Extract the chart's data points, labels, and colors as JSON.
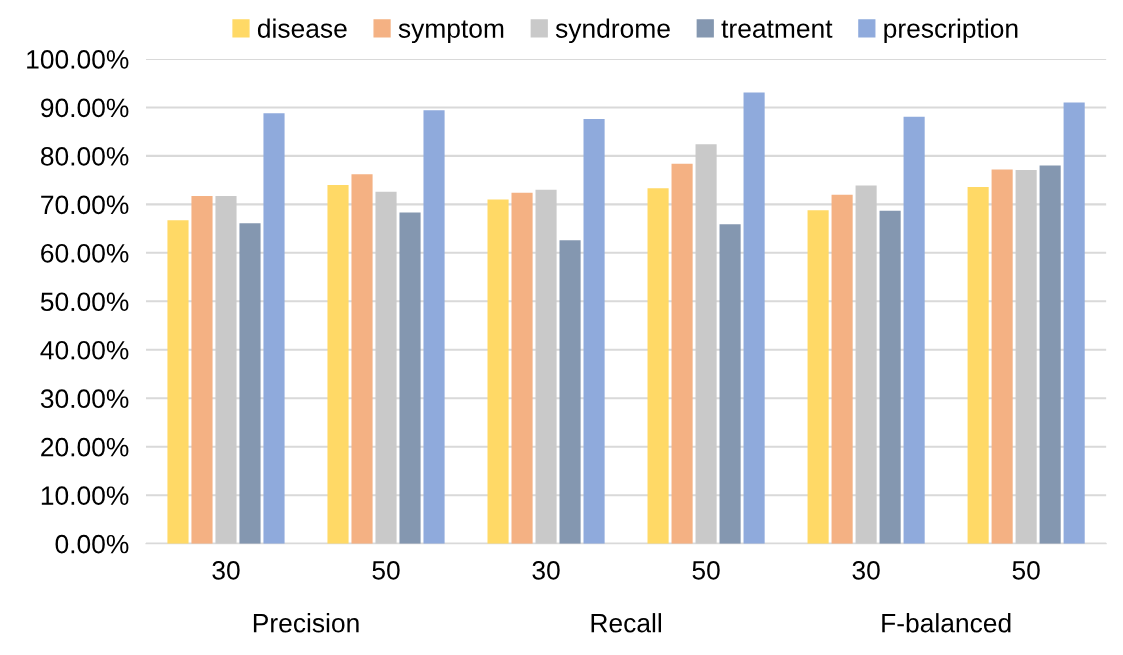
{
  "chart_data": {
    "type": "bar",
    "categories": [
      "30",
      "50",
      "30",
      "50",
      "30",
      "50"
    ],
    "annotations": [
      "Precision",
      "Recall",
      "F-balanced"
    ],
    "series": [
      {
        "name": "disease",
        "color": "#ffd966",
        "values": [
          66.7,
          74.0,
          71.0,
          73.3,
          68.8,
          73.6
        ]
      },
      {
        "name": "symptom",
        "color": "#f4b183",
        "values": [
          71.7,
          76.2,
          72.4,
          78.4,
          72.0,
          77.2
        ]
      },
      {
        "name": "syndrome",
        "color": "#c9c9c9",
        "values": [
          71.7,
          72.6,
          73.0,
          82.4,
          73.9,
          77.1
        ]
      },
      {
        "name": "treatment",
        "color": "#8497b0",
        "values": [
          66.1,
          68.3,
          62.6,
          65.9,
          68.7,
          78.0
        ]
      },
      {
        "name": "prescription",
        "color": "#8faadc",
        "values": [
          88.8,
          89.4,
          87.6,
          93.1,
          88.1,
          91.0
        ]
      }
    ],
    "ylim": [
      0,
      100
    ],
    "yticks": [
      {
        "value": 0,
        "label": "0.00%"
      },
      {
        "value": 10,
        "label": "10.00%"
      },
      {
        "value": 20,
        "label": "20.00%"
      },
      {
        "value": 30,
        "label": "30.00%"
      },
      {
        "value": 40,
        "label": "40.00%"
      },
      {
        "value": 50,
        "label": "50.00%"
      },
      {
        "value": 60,
        "label": "60.00%"
      },
      {
        "value": 70,
        "label": "70.00%"
      },
      {
        "value": 80,
        "label": "80.00%"
      },
      {
        "value": 90,
        "label": "90.00%"
      },
      {
        "value": 100,
        "label": "100.00%"
      }
    ],
    "grid": "y",
    "legend": "top"
  }
}
